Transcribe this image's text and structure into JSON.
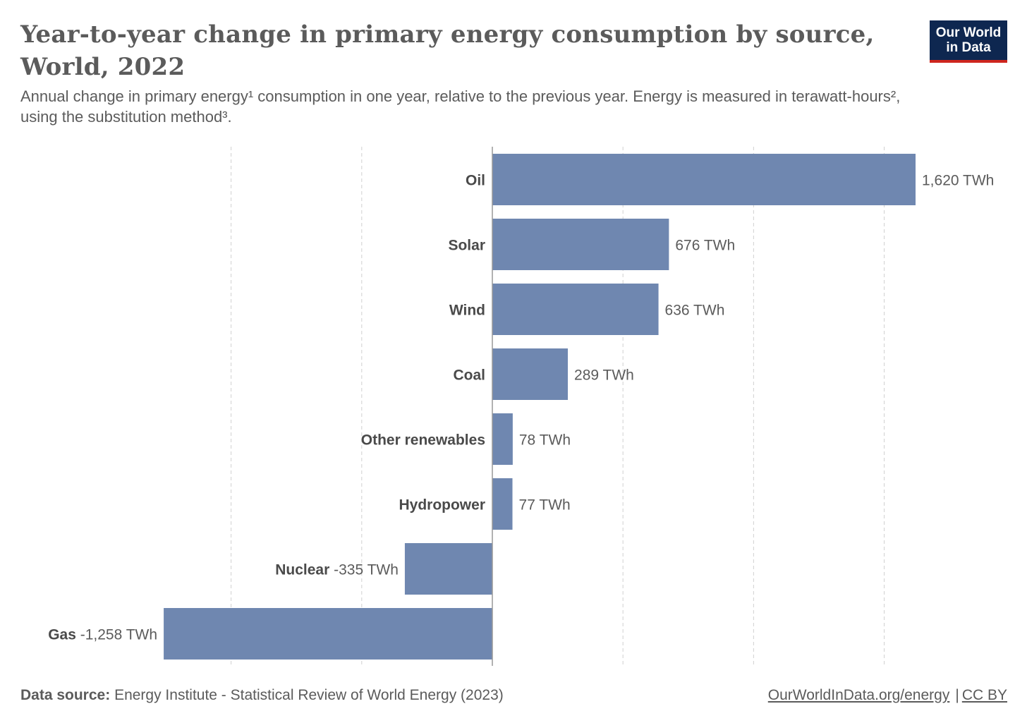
{
  "header": {
    "title": "Year-to-year change in primary energy consumption by source, World, 2022",
    "subtitle": "Annual change in primary energy¹ consumption in one year, relative to the previous year. Energy is measured in terawatt-hours², using the substitution method³."
  },
  "logo": {
    "line1": "Our World",
    "line2": "in Data",
    "background_color": "#0e2750",
    "accent_color": "#ce261e"
  },
  "chart_data": {
    "type": "bar",
    "orientation": "horizontal",
    "categories": [
      "Oil",
      "Solar",
      "Wind",
      "Coal",
      "Other renewables",
      "Hydropower",
      "Nuclear",
      "Gas"
    ],
    "values": [
      1620,
      676,
      636,
      289,
      78,
      77,
      -335,
      -1258
    ],
    "value_labels": [
      "1,620 TWh",
      "676 TWh",
      "636 TWh",
      "289 TWh",
      "78 TWh",
      "77 TWh",
      "-335 TWh",
      "-1,258 TWh"
    ],
    "unit": "TWh",
    "xlim": [
      -1258,
      1620
    ],
    "gridlines": [
      -1000,
      -500,
      500,
      1000,
      1500
    ],
    "grid": true,
    "bar_color": "#6f87b0"
  },
  "footer": {
    "source_label": "Data source:",
    "source_text": "Energy Institute - Statistical Review of World Energy (2023)",
    "link_text": "OurWorldInData.org/energy",
    "separator": "|",
    "license": "CC BY"
  }
}
